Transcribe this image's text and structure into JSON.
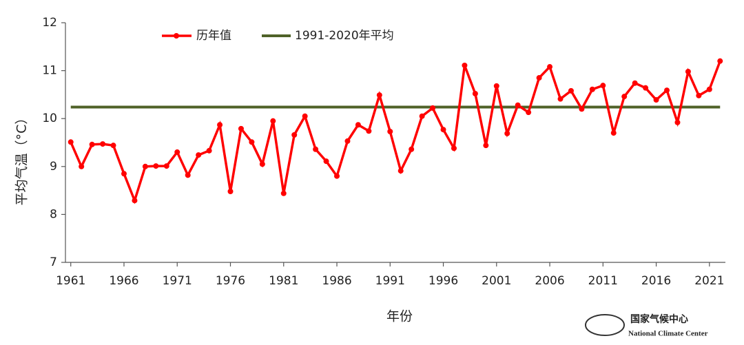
{
  "chart_data": {
    "type": "line",
    "x": [
      1961,
      1962,
      1963,
      1964,
      1965,
      1966,
      1967,
      1968,
      1969,
      1970,
      1971,
      1972,
      1973,
      1974,
      1975,
      1976,
      1977,
      1978,
      1979,
      1980,
      1981,
      1982,
      1983,
      1984,
      1985,
      1986,
      1987,
      1988,
      1989,
      1990,
      1991,
      1992,
      1993,
      1994,
      1995,
      1996,
      1997,
      1998,
      1999,
      2000,
      2001,
      2002,
      2003,
      2004,
      2005,
      2006,
      2007,
      2008,
      2009,
      2010,
      2011,
      2012,
      2013,
      2014,
      2015,
      2016,
      2017,
      2018,
      2019,
      2020,
      2021,
      2022
    ],
    "series": [
      {
        "name": "历年值",
        "color": "#ff0000",
        "values": [
          9.51,
          9.0,
          9.46,
          9.47,
          9.44,
          8.85,
          8.29,
          9.0,
          9.01,
          9.01,
          9.3,
          8.82,
          9.24,
          9.33,
          9.87,
          8.48,
          9.79,
          9.51,
          9.05,
          9.95,
          8.44,
          9.66,
          10.05,
          9.36,
          9.11,
          8.8,
          9.53,
          9.87,
          9.74,
          10.49,
          9.73,
          8.91,
          9.36,
          10.05,
          10.22,
          9.77,
          9.38,
          11.11,
          10.52,
          9.44,
          10.68,
          9.69,
          10.28,
          10.13,
          10.85,
          11.08,
          10.41,
          10.58,
          10.2,
          10.61,
          10.69,
          9.7,
          10.46,
          10.74,
          10.64,
          10.39,
          10.59,
          9.92,
          10.98,
          10.48,
          10.61,
          11.2
        ]
      }
    ],
    "reference": {
      "name": "1991-2020年平均",
      "color": "#4f6228",
      "value": 10.24
    },
    "xlabel": "年份",
    "ylabel": "平均气温（°C）",
    "xlim": [
      1960.5,
      2022.5
    ],
    "xticks": [
      1961,
      1966,
      1971,
      1976,
      1981,
      1986,
      1991,
      1996,
      2001,
      2006,
      2011,
      2016,
      2021
    ],
    "ylim": [
      7,
      12
    ],
    "yticks": [
      7,
      8,
      9,
      10,
      11,
      12
    ],
    "logo": {
      "name_cn": "国家气候中心",
      "name_en": "National Climate Center"
    }
  }
}
